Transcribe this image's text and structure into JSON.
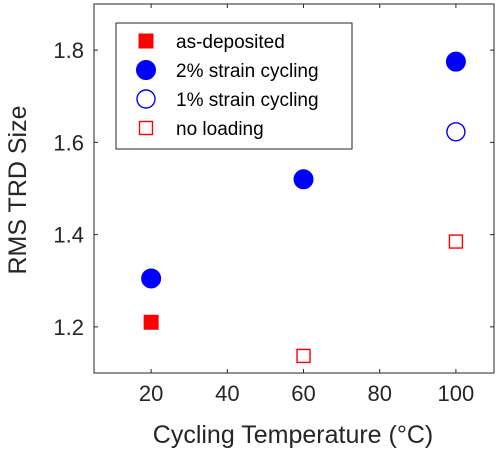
{
  "chart_data": {
    "type": "scatter",
    "xlabel": "Cycling Temperature  (°C)",
    "ylabel": "RMS TRD Size",
    "xlim": [
      5,
      110
    ],
    "ylim": [
      1.1,
      1.9
    ],
    "xticks": [
      20,
      40,
      60,
      80,
      100
    ],
    "yticks": [
      1.2,
      1.4,
      1.6,
      1.8
    ],
    "xtick_labels": [
      "20",
      "40",
      "60",
      "80",
      "100"
    ],
    "ytick_labels": [
      "1.2",
      "1.4",
      "1.6",
      "1.8"
    ],
    "grid": false,
    "legend_position": "top-left",
    "series": [
      {
        "name": "as-deposited",
        "marker": "square",
        "filled": true,
        "color": "#ff0000",
        "x": [
          20
        ],
        "y": [
          1.21
        ]
      },
      {
        "name": "2% strain cycling",
        "marker": "circle",
        "filled": true,
        "color": "#0000ff",
        "x": [
          20,
          60,
          100
        ],
        "y": [
          1.305,
          1.52,
          1.775
        ]
      },
      {
        "name": "1% strain cycling",
        "marker": "circle",
        "filled": false,
        "color": "#0000ff",
        "x": [
          100
        ],
        "y": [
          1.623
        ]
      },
      {
        "name": "no loading",
        "marker": "square",
        "filled": false,
        "color": "#ff0000",
        "x": [
          60,
          100
        ],
        "y": [
          1.137,
          1.385
        ]
      }
    ]
  }
}
